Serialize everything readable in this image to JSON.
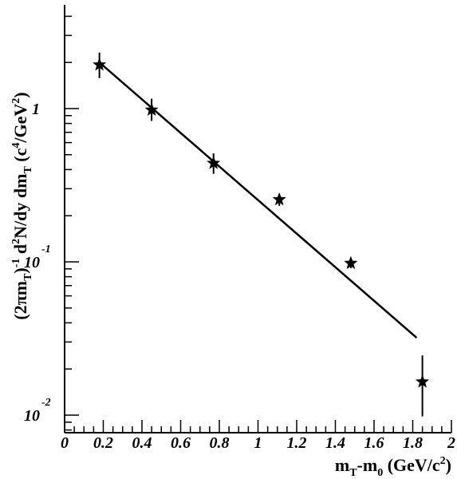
{
  "chart_data": {
    "type": "scatter",
    "title": "",
    "xlabel": "m_T-m_0 (GeV/c^2)",
    "ylabel": "(2πm_T)^-1 d^2N/dy dm_T (c^4/GeV^2)",
    "xlim": [
      0,
      2
    ],
    "ylim": [
      0.01,
      5
    ],
    "yscale": "log",
    "grid": false,
    "x_ticks": [
      0,
      0.2,
      0.4,
      0.6,
      0.8,
      1,
      1.2,
      1.4,
      1.6,
      1.8,
      2
    ],
    "x_tick_labels": [
      "0",
      "0.2",
      "0.4",
      "0.6",
      "0.8",
      "1",
      "1.2",
      "1.4",
      "1.6",
      "1.8",
      "2"
    ],
    "y_tick_labels": [
      {
        "value": 1,
        "mantissa": "1",
        "exponent": ""
      },
      {
        "value": 0.1,
        "mantissa": "10",
        "exponent": "-1"
      },
      {
        "value": 0.01,
        "mantissa": "10",
        "exponent": "-2"
      }
    ],
    "series": [
      {
        "marker": "star",
        "points": [
          {
            "x": 0.18,
            "y": 1.93,
            "y_low": 1.58,
            "y_high": 2.32
          },
          {
            "x": 0.45,
            "y": 0.98,
            "y_low": 0.83,
            "y_high": 1.16
          },
          {
            "x": 0.77,
            "y": 0.44,
            "y_low": 0.375,
            "y_high": 0.51
          },
          {
            "x": 1.11,
            "y": 0.255,
            "y_low": 0.232,
            "y_high": 0.278
          },
          {
            "x": 1.48,
            "y": 0.098,
            "y_low": 0.091,
            "y_high": 0.106
          },
          {
            "x": 1.85,
            "y": 0.0165,
            "y_low": 0.0098,
            "y_high": 0.0245
          }
        ]
      }
    ],
    "fit_line": {
      "x": [
        0.18,
        1.82
      ],
      "y": [
        2.0,
        0.032
      ]
    }
  }
}
